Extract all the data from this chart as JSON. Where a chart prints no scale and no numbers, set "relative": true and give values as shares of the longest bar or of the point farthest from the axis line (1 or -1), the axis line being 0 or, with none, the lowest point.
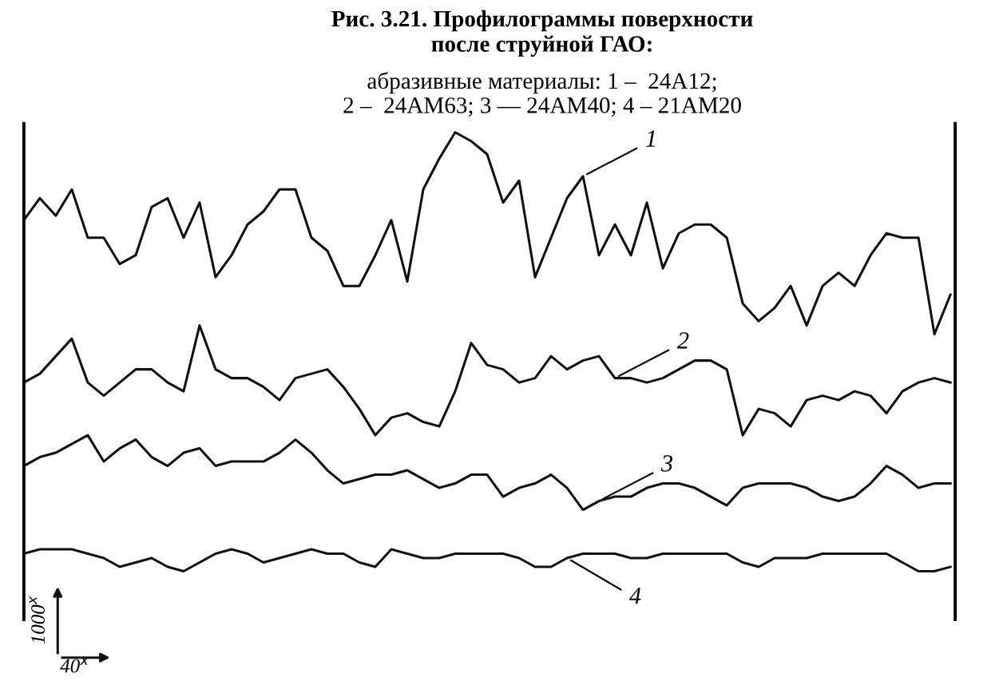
{
  "chart_data": {
    "type": "line",
    "relative": true,
    "title": "Рис. 3.21. Профилограммы поверхности\nпосле струйной ГАО:",
    "subtitle": "абразивные материалы: 1 –  24А12;\n2 –  24АМ63; 3 — 24АМ40; 4 – 21АМ20",
    "annotations": [
      "1000$^{x}$",
      "40$^{x}$"
    ],
    "categories": [
      null,
      null,
      null,
      null,
      null,
      null,
      null,
      null,
      null,
      null,
      null,
      null,
      null,
      null,
      null,
      null,
      null,
      null,
      null,
      null,
      null,
      null,
      null,
      null,
      null,
      null,
      null,
      null,
      null,
      null,
      null,
      null,
      null,
      null,
      null,
      null,
      null,
      null,
      null,
      null,
      null,
      null,
      null,
      null,
      null,
      null,
      null,
      null,
      null,
      null,
      null,
      null,
      null,
      null,
      null,
      null,
      null,
      null,
      null
    ],
    "series": [
      {
        "name": "1",
        "color": "#111111",
        "values": [
          0.8,
          0.85,
          0.81,
          0.87,
          0.76,
          0.76,
          0.7,
          0.72,
          0.83,
          0.85,
          0.76,
          0.84,
          0.67,
          0.72,
          0.79,
          0.82,
          0.87,
          0.87,
          0.76,
          0.73,
          0.65,
          0.65,
          0.72,
          0.8,
          0.66,
          0.87,
          0.94,
          1.0,
          0.98,
          0.95,
          0.84,
          0.89,
          0.67,
          0.76,
          0.85,
          0.9,
          0.72,
          0.79,
          0.72,
          0.84,
          0.69,
          0.77,
          0.79,
          0.79,
          0.76,
          0.61,
          0.57,
          0.6,
          0.65,
          0.56,
          0.65,
          0.68,
          0.65,
          0.72,
          0.77,
          0.76,
          0.76,
          0.54,
          0.63
        ]
      },
      {
        "name": "2",
        "color": "#111111",
        "values": [
          0.43,
          0.45,
          0.49,
          0.53,
          0.43,
          0.4,
          0.43,
          0.46,
          0.46,
          0.43,
          0.41,
          0.56,
          0.46,
          0.44,
          0.44,
          0.42,
          0.39,
          0.44,
          0.45,
          0.46,
          0.42,
          0.37,
          0.31,
          0.35,
          0.36,
          0.34,
          0.33,
          0.41,
          0.52,
          0.47,
          0.46,
          0.43,
          0.44,
          0.49,
          0.46,
          0.48,
          0.49,
          0.44,
          0.44,
          0.43,
          0.44,
          0.46,
          0.48,
          0.48,
          0.46,
          0.31,
          0.37,
          0.36,
          0.33,
          0.39,
          0.4,
          0.39,
          0.41,
          0.4,
          0.36,
          0.41,
          0.43,
          0.44,
          0.43
        ]
      },
      {
        "name": "3",
        "color": "#111111",
        "values": [
          0.24,
          0.26,
          0.27,
          0.29,
          0.31,
          0.25,
          0.28,
          0.3,
          0.26,
          0.24,
          0.27,
          0.28,
          0.24,
          0.25,
          0.25,
          0.25,
          0.27,
          0.3,
          0.27,
          0.23,
          0.2,
          0.21,
          0.22,
          0.22,
          0.23,
          0.21,
          0.19,
          0.2,
          0.22,
          0.22,
          0.17,
          0.19,
          0.2,
          0.22,
          0.19,
          0.14,
          0.16,
          0.17,
          0.17,
          0.19,
          0.2,
          0.2,
          0.19,
          0.17,
          0.15,
          0.19,
          0.2,
          0.2,
          0.2,
          0.19,
          0.17,
          0.16,
          0.17,
          0.2,
          0.24,
          0.22,
          0.19,
          0.2,
          0.2
        ]
      },
      {
        "name": "4",
        "color": "#111111",
        "values": [
          0.04,
          0.05,
          0.05,
          0.05,
          0.04,
          0.03,
          0.01,
          0.02,
          0.03,
          0.01,
          0.0,
          0.02,
          0.04,
          0.05,
          0.04,
          0.02,
          0.03,
          0.04,
          0.05,
          0.04,
          0.04,
          0.02,
          0.01,
          0.05,
          0.04,
          0.03,
          0.03,
          0.04,
          0.04,
          0.04,
          0.04,
          0.03,
          0.01,
          0.01,
          0.03,
          0.04,
          0.04,
          0.04,
          0.03,
          0.03,
          0.04,
          0.04,
          0.04,
          0.04,
          0.04,
          0.02,
          0.01,
          0.03,
          0.03,
          0.03,
          0.04,
          0.04,
          0.04,
          0.04,
          0.04,
          0.02,
          0.0,
          0.0,
          0.01
        ]
      }
    ]
  }
}
